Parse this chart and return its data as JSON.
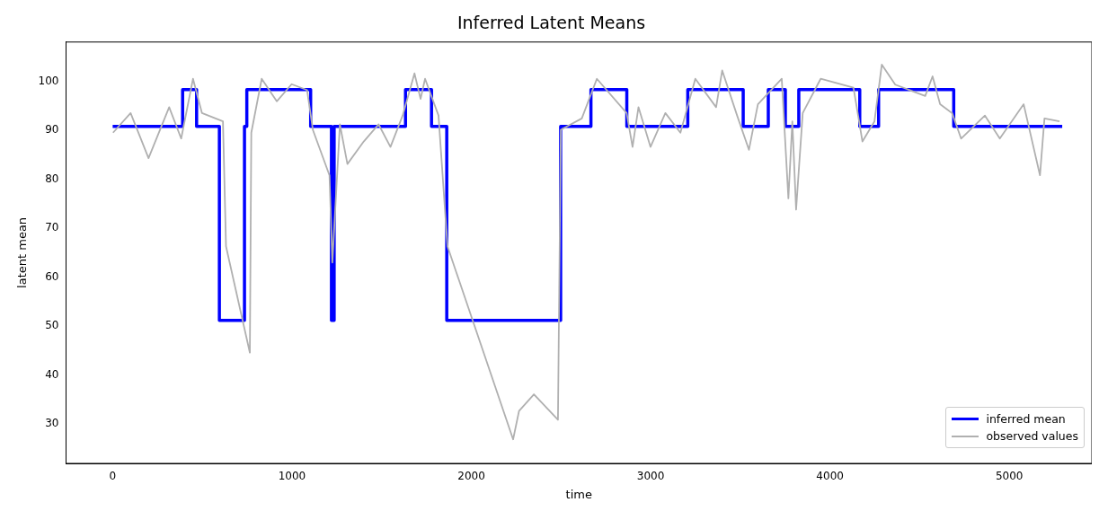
{
  "chart_data": {
    "type": "step",
    "title": "Inferred Latent Means",
    "xlabel": "time",
    "ylabel": "latent mean",
    "xlim": [
      -260,
      5460
    ],
    "ylim": [
      22,
      108
    ],
    "xticks": [
      0,
      1000,
      2000,
      3000,
      4000,
      5000
    ],
    "yticks": [
      30,
      40,
      50,
      60,
      70,
      80,
      90,
      100
    ],
    "grid": false,
    "legend": "bottom right",
    "series": [
      {
        "name": "inferred mean",
        "color": "#0000ff",
        "x": [
          0,
          390,
          468,
          595,
          735,
          748,
          1104,
          1220,
          1235,
          1633,
          1778,
          1863,
          2498,
          2667,
          2867,
          3207,
          3516,
          3656,
          3751,
          3826,
          4166,
          4271,
          4690,
          5295
        ],
        "values": [
          90.8,
          98.3,
          90.8,
          51.2,
          90.8,
          98.3,
          90.8,
          51.2,
          90.8,
          98.3,
          90.8,
          51.2,
          90.8,
          98.3,
          90.8,
          98.3,
          90.8,
          98.3,
          90.8,
          98.3,
          90.8,
          98.3,
          90.8,
          90.8
        ]
      },
      {
        "name": "observed values",
        "type": "line",
        "color": "#b0b0b0",
        "x": [
          2,
          100,
          200,
          315,
          382,
          448,
          498,
          615,
          632,
          765,
          773,
          831,
          915,
          998,
          1084,
          1117,
          1209,
          1225,
          1267,
          1309,
          1400,
          1483,
          1549,
          1617,
          1683,
          1717,
          1742,
          1817,
          1867,
          2233,
          2266,
          2349,
          2483,
          2499,
          2616,
          2700,
          2866,
          2899,
          2932,
          2999,
          3082,
          3166,
          3249,
          3365,
          3399,
          3482,
          3548,
          3598,
          3731,
          3768,
          3790,
          3811,
          3848,
          3948,
          4131,
          4181,
          4248,
          4289,
          4364,
          4531,
          4572,
          4614,
          4681,
          4731,
          4864,
          4947,
          5080,
          5171,
          5196,
          5280
        ],
        "values": [
          89.5,
          93.5,
          84.3,
          94.7,
          88.3,
          100.5,
          93.5,
          91.8,
          66.3,
          44.6,
          89.5,
          100.5,
          95.9,
          99.4,
          98.2,
          90,
          80.8,
          63,
          91.2,
          83.1,
          87.7,
          91.2,
          86.6,
          93,
          101.6,
          96.4,
          100.5,
          93,
          66.3,
          26.9,
          32.7,
          36.1,
          30.9,
          90.1,
          92.4,
          100.5,
          93.5,
          86.6,
          94.7,
          86.6,
          93.5,
          89.5,
          100.5,
          94.7,
          102.2,
          93,
          86,
          95.3,
          100.5,
          76.1,
          91.8,
          73.8,
          93.5,
          100.5,
          98.7,
          87.7,
          91.8,
          103.4,
          99.3,
          97,
          101,
          95.3,
          93.5,
          88.3,
          93,
          88.3,
          95.3,
          80.8,
          92.4,
          91.8
        ]
      }
    ]
  }
}
